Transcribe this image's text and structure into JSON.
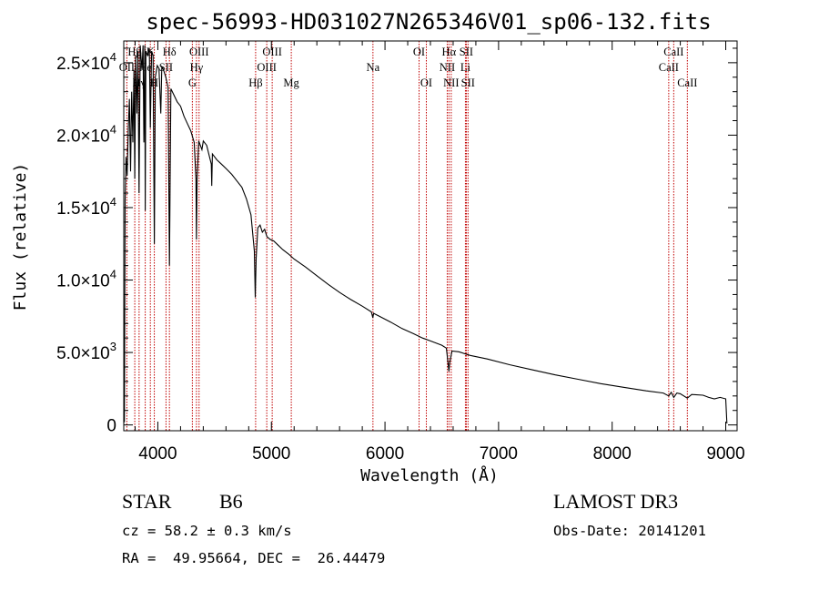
{
  "chart_data": {
    "type": "line",
    "title": "spec-56993-HD031027N265346V01_sp06-132.fits",
    "xlabel": "Wavelength (Å)",
    "ylabel": "Flux (relative)",
    "xlim": [
      3700,
      9100
    ],
    "ylim": [
      -400,
      26500
    ],
    "x_ticks": [
      4000,
      5000,
      6000,
      7000,
      8000,
      9000
    ],
    "y_ticks": [
      {
        "value": 0,
        "mantissa": "0",
        "exponent": ""
      },
      {
        "value": 5000,
        "mantissa": "5.0×10",
        "exponent": "3"
      },
      {
        "value": 10000,
        "mantissa": "1.0×10",
        "exponent": "4"
      },
      {
        "value": 15000,
        "mantissa": "1.5×10",
        "exponent": "4"
      },
      {
        "value": 20000,
        "mantissa": "2.0×10",
        "exponent": "4"
      },
      {
        "value": 25000,
        "mantissa": "2.5×10",
        "exponent": "4"
      }
    ],
    "spectral_lines": [
      {
        "label": "Hβ",
        "wavelength": 3797,
        "row": 1
      },
      {
        "label": "OII",
        "wavelength": 3727,
        "row": 2
      },
      {
        "label": "Hγ",
        "wavelength": 3835,
        "row": 3
      },
      {
        "label": "He",
        "wavelength": 3889,
        "row": 2
      },
      {
        "label": "K",
        "wavelength": 3934,
        "row": 1
      },
      {
        "label": "H",
        "wavelength": 3969,
        "row": 3
      },
      {
        "label": "SII",
        "wavelength": 4072,
        "row": 2
      },
      {
        "label": "Hδ",
        "wavelength": 4102,
        "row": 1
      },
      {
        "label": "G",
        "wavelength": 4304,
        "row": 3
      },
      {
        "label": "Hγ",
        "wavelength": 4340,
        "row": 2
      },
      {
        "label": "OIII",
        "wavelength": 4363,
        "row": 1
      },
      {
        "label": "Hβ",
        "wavelength": 4861,
        "row": 3
      },
      {
        "label": "OIII",
        "wavelength": 4959,
        "row": 2
      },
      {
        "label": "OIII",
        "wavelength": 5007,
        "row": 1
      },
      {
        "label": "Mg",
        "wavelength": 5175,
        "row": 3
      },
      {
        "label": "Na",
        "wavelength": 5894,
        "row": 2
      },
      {
        "label": "OI",
        "wavelength": 6300,
        "row": 1
      },
      {
        "label": "OI",
        "wavelength": 6364,
        "row": 3
      },
      {
        "label": "NII",
        "wavelength": 6548,
        "row": 2
      },
      {
        "label": "Hα",
        "wavelength": 6563,
        "row": 1
      },
      {
        "label": "NII",
        "wavelength": 6583,
        "row": 3
      },
      {
        "label": "Li",
        "wavelength": 6708,
        "row": 2
      },
      {
        "label": "SII",
        "wavelength": 6716,
        "row": 1
      },
      {
        "label": "SII",
        "wavelength": 6731,
        "row": 3
      },
      {
        "label": "CaII",
        "wavelength": 8498,
        "row": 2
      },
      {
        "label": "CaII",
        "wavelength": 8542,
        "row": 1
      },
      {
        "label": "CaII",
        "wavelength": 8662,
        "row": 3
      }
    ],
    "series": [
      {
        "name": "spectrum",
        "points": [
          [
            3700,
            100
          ],
          [
            3702,
            7200
          ],
          [
            3706,
            200
          ],
          [
            3712,
            15500
          ],
          [
            3720,
            18500
          ],
          [
            3730,
            17200
          ],
          [
            3740,
            20500
          ],
          [
            3750,
            22500
          ],
          [
            3760,
            17500
          ],
          [
            3770,
            23000
          ],
          [
            3780,
            19500
          ],
          [
            3790,
            24500
          ],
          [
            3797,
            17000
          ],
          [
            3805,
            25500
          ],
          [
            3815,
            21500
          ],
          [
            3825,
            25800
          ],
          [
            3835,
            16000
          ],
          [
            3845,
            26200
          ],
          [
            3860,
            24500
          ],
          [
            3870,
            26200
          ],
          [
            3877,
            19500
          ],
          [
            3885,
            26200
          ],
          [
            3889,
            14800
          ],
          [
            3895,
            25800
          ],
          [
            3910,
            25500
          ],
          [
            3925,
            26000
          ],
          [
            3934,
            20500
          ],
          [
            3945,
            25800
          ],
          [
            3958,
            25500
          ],
          [
            3969,
            12500
          ],
          [
            3978,
            24000
          ],
          [
            3995,
            24800
          ],
          [
            4010,
            24600
          ],
          [
            4026,
            21500
          ],
          [
            4035,
            24700
          ],
          [
            4050,
            24500
          ],
          [
            4070,
            24000
          ],
          [
            4090,
            23300
          ],
          [
            4102,
            11000
          ],
          [
            4115,
            23200
          ],
          [
            4140,
            22800
          ],
          [
            4170,
            22300
          ],
          [
            4200,
            22000
          ],
          [
            4230,
            21300
          ],
          [
            4260,
            20800
          ],
          [
            4290,
            20300
          ],
          [
            4320,
            19500
          ],
          [
            4335,
            17000
          ],
          [
            4340,
            12800
          ],
          [
            4346,
            17000
          ],
          [
            4360,
            19600
          ],
          [
            4388,
            19000
          ],
          [
            4400,
            19600
          ],
          [
            4430,
            19300
          ],
          [
            4471,
            18000
          ],
          [
            4475,
            16500
          ],
          [
            4480,
            18700
          ],
          [
            4520,
            18300
          ],
          [
            4560,
            18000
          ],
          [
            4600,
            17700
          ],
          [
            4650,
            17300
          ],
          [
            4700,
            16800
          ],
          [
            4740,
            16400
          ],
          [
            4780,
            15600
          ],
          [
            4820,
            14500
          ],
          [
            4850,
            12000
          ],
          [
            4858,
            8800
          ],
          [
            4866,
            11500
          ],
          [
            4880,
            13600
          ],
          [
            4900,
            13800
          ],
          [
            4920,
            13300
          ],
          [
            4940,
            13500
          ],
          [
            4960,
            13000
          ],
          [
            4990,
            12800
          ],
          [
            5020,
            12700
          ],
          [
            5060,
            12400
          ],
          [
            5100,
            12100
          ],
          [
            5150,
            11800
          ],
          [
            5200,
            11450
          ],
          [
            5300,
            10900
          ],
          [
            5400,
            10300
          ],
          [
            5500,
            9700
          ],
          [
            5600,
            9150
          ],
          [
            5700,
            8650
          ],
          [
            5800,
            8200
          ],
          [
            5880,
            7800
          ],
          [
            5893,
            7400
          ],
          [
            5900,
            7700
          ],
          [
            5950,
            7500
          ],
          [
            6050,
            7100
          ],
          [
            6150,
            6650
          ],
          [
            6250,
            6300
          ],
          [
            6330,
            6000
          ],
          [
            6400,
            5800
          ],
          [
            6500,
            5500
          ],
          [
            6540,
            5300
          ],
          [
            6556,
            4200
          ],
          [
            6563,
            3700
          ],
          [
            6570,
            4300
          ],
          [
            6590,
            5100
          ],
          [
            6650,
            5050
          ],
          [
            6750,
            4800
          ],
          [
            6900,
            4550
          ],
          [
            7100,
            4150
          ],
          [
            7300,
            3800
          ],
          [
            7500,
            3450
          ],
          [
            7700,
            3150
          ],
          [
            7900,
            2850
          ],
          [
            8100,
            2600
          ],
          [
            8300,
            2350
          ],
          [
            8450,
            2200
          ],
          [
            8498,
            2000
          ],
          [
            8520,
            2250
          ],
          [
            8542,
            1900
          ],
          [
            8570,
            2200
          ],
          [
            8600,
            2150
          ],
          [
            8662,
            1850
          ],
          [
            8700,
            2100
          ],
          [
            8800,
            2050
          ],
          [
            8850,
            1900
          ],
          [
            8900,
            1800
          ],
          [
            8950,
            1900
          ],
          [
            9000,
            1800
          ],
          [
            9010,
            100
          ]
        ]
      }
    ]
  },
  "info": {
    "object_class": "STAR",
    "subclass": "B6",
    "survey": "LAMOST DR3",
    "redshift": "cz = 58.2 ± 0.3 km/s",
    "obs_date": "Obs-Date: 20141201",
    "coords": "RA =  49.95664, DEC =  26.44479"
  },
  "colors": {
    "spectrum": "#000000",
    "line_marker": "#c00000",
    "axis": "#000000"
  }
}
